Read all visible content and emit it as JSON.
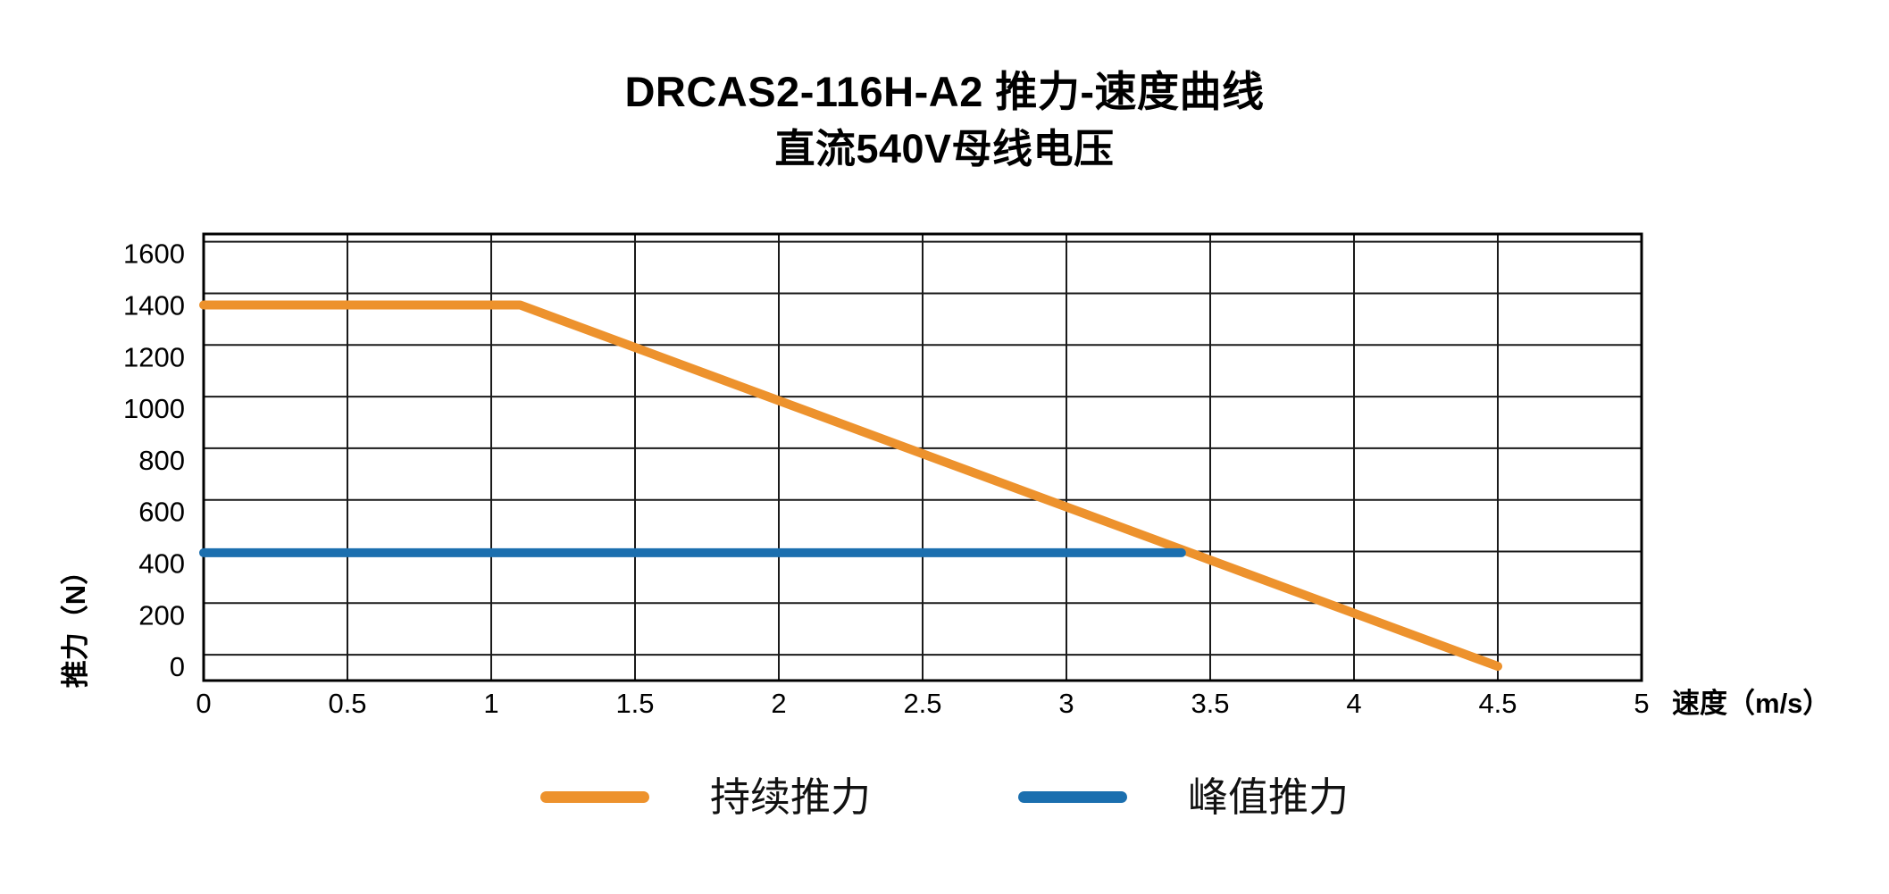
{
  "header": {
    "title": "DRCAS2-116H-A2 推力-速度曲线",
    "subtitle": "直流540V母线电压"
  },
  "chart_data": {
    "type": "line",
    "title": "DRCAS2-116H-A2 推力-速度曲线",
    "subtitle": "直流540V母线电压",
    "xlabel": "速度（m/s）",
    "ylabel": "推力（N）",
    "xlim": [
      0,
      5
    ],
    "ylim": [
      0,
      1600
    ],
    "xticks": [
      "0",
      "0.5",
      "1",
      "1.5",
      "2",
      "2.5",
      "3",
      "3.5",
      "4",
      "4.5",
      "5"
    ],
    "xtick_values": [
      0,
      0.5,
      1,
      1.5,
      2,
      2.5,
      3,
      3.5,
      4,
      4.5,
      5
    ],
    "yticks": [
      "0",
      "200",
      "400",
      "600",
      "800",
      "1000",
      "1200",
      "1400",
      "1600"
    ],
    "ytick_values": [
      0,
      200,
      400,
      600,
      800,
      1000,
      1200,
      1400,
      1600
    ],
    "grid": true,
    "legend_position": "bottom",
    "axis_color": "#000000",
    "grid_color": "#1a1a1a",
    "series": [
      {
        "name": "持续推力",
        "color": "#ED922D",
        "points": [
          [
            0,
            1400
          ],
          [
            1.1,
            1400
          ],
          [
            4.5,
            0
          ]
        ]
      },
      {
        "name": "峰值推力",
        "color": "#1B6FAF",
        "points": [
          [
            0,
            440
          ],
          [
            3.4,
            440
          ]
        ]
      }
    ]
  }
}
